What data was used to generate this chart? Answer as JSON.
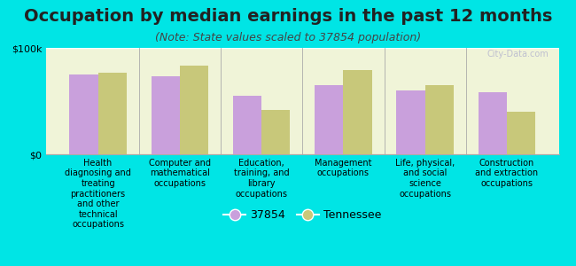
{
  "title": "Occupation by median earnings in the past 12 months",
  "subtitle": "(Note: State values scaled to 37854 population)",
  "background_outer": "#00e5e5",
  "categories": [
    "Health\ndiagnosing and\ntreating\npractitioners\nand other\ntechnical\noccupations",
    "Computer and\nmathematical\noccupations",
    "Education,\ntraining, and\nlibrary\noccupations",
    "Management\noccupations",
    "Life, physical,\nand social\nscience\noccupations",
    "Construction\nand extraction\noccupations"
  ],
  "values_37854": [
    75000,
    73000,
    55000,
    65000,
    60000,
    58000
  ],
  "values_tennessee": [
    77000,
    83000,
    42000,
    79000,
    65000,
    40000
  ],
  "color_37854": "#c9a0dc",
  "color_tennessee": "#c8c87a",
  "ylim": [
    0,
    100000
  ],
  "ytick_labels": [
    "$0",
    "$100k"
  ],
  "legend_37854": "37854",
  "legend_tennessee": "Tennessee",
  "bar_width": 0.35,
  "watermark": "City-Data.com",
  "title_fontsize": 14,
  "subtitle_fontsize": 9,
  "tick_fontsize": 8,
  "legend_fontsize": 9
}
